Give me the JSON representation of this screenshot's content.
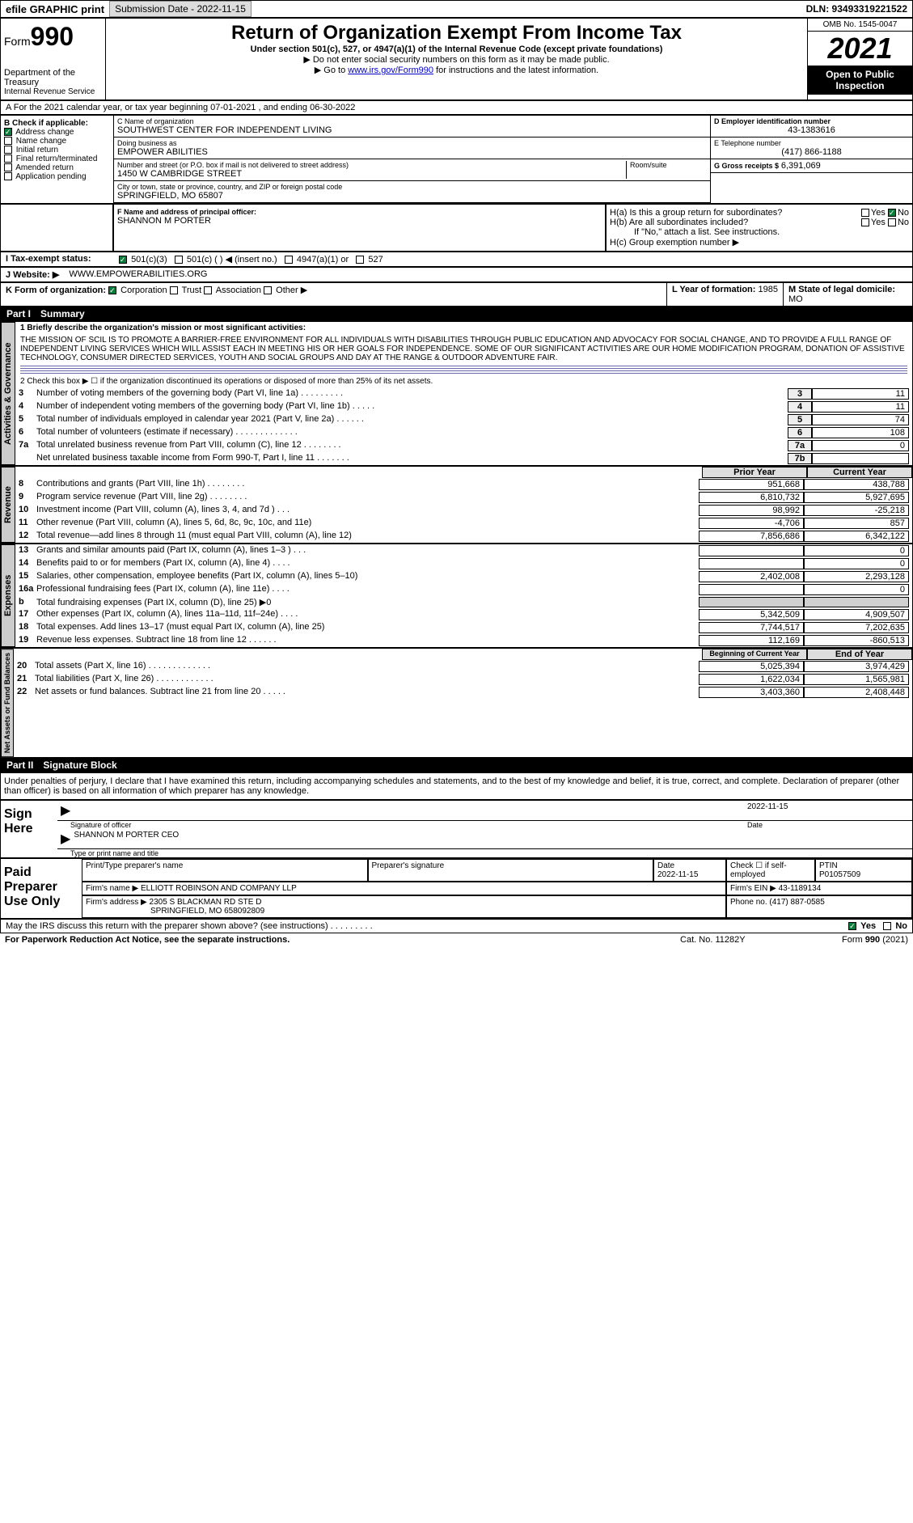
{
  "header": {
    "efile": "efile GRAPHIC print",
    "submission_label": "Submission Date - 2022-11-15",
    "dln": "DLN: 93493319221522"
  },
  "form_top": {
    "form_word": "Form",
    "form_num": "990",
    "dept": "Department of the Treasury",
    "irs": "Internal Revenue Service",
    "title": "Return of Organization Exempt From Income Tax",
    "subtitle": "Under section 501(c), 527, or 4947(a)(1) of the Internal Revenue Code (except private foundations)",
    "instr1": "▶ Do not enter social security numbers on this form as it may be made public.",
    "instr2a": "▶ Go to ",
    "instr2_link": "www.irs.gov/Form990",
    "instr2b": " for instructions and the latest information.",
    "omb": "OMB No. 1545-0047",
    "year": "2021",
    "open": "Open to Public Inspection"
  },
  "row_a": "A  For the 2021 calendar year, or tax year beginning 07-01-2021   , and ending 06-30-2022",
  "col_b": {
    "title": "B Check if applicable:",
    "items": [
      {
        "label": "Address change",
        "checked": true
      },
      {
        "label": "Name change",
        "checked": false
      },
      {
        "label": "Initial return",
        "checked": false
      },
      {
        "label": "Final return/terminated",
        "checked": false
      },
      {
        "label": "Amended return",
        "checked": false
      },
      {
        "label": "Application pending",
        "checked": false
      }
    ]
  },
  "col_c": {
    "name_label": "C Name of organization",
    "name": "SOUTHWEST CENTER FOR INDEPENDENT LIVING",
    "dba_label": "Doing business as",
    "dba": "EMPOWER ABILITIES",
    "addr_label": "Number and street (or P.O. box if mail is not delivered to street address)",
    "addr": "1450 W CAMBRIDGE STREET",
    "room_label": "Room/suite",
    "city_label": "City or town, state or province, country, and ZIP or foreign postal code",
    "city": "SPRINGFIELD, MO  65807"
  },
  "col_d": {
    "d_label": "D Employer identification number",
    "d_val": "43-1383616",
    "e_label": "E Telephone number",
    "e_val": "(417) 866-1188",
    "g_label": "G Gross receipts $",
    "g_val": "6,391,069"
  },
  "block_f": {
    "f_label": "F  Name and address of principal officer:",
    "f_val": "SHANNON M PORTER"
  },
  "block_h": {
    "ha": "H(a)  Is this a group return for subordinates?",
    "ha_no": "No",
    "hb": "H(b)  Are all subordinates included?",
    "hb_note": "If \"No,\" attach a list. See instructions.",
    "hc": "H(c)  Group exemption number ▶"
  },
  "row_i": {
    "i_label": "I  Tax-exempt status:",
    "i_501c3": "501(c)(3)",
    "i_501c": "501(c) (   ) ◀ (insert no.)",
    "i_4947": "4947(a)(1) or",
    "i_527": "527"
  },
  "row_j": {
    "j_label": "J  Website: ▶",
    "j_val": "WWW.EMPOWERABILITIES.ORG"
  },
  "row_k": {
    "k_label": "K Form of organization:",
    "k_corp": "Corporation",
    "k_trust": "Trust",
    "k_assoc": "Association",
    "k_other": "Other ▶",
    "l_label": "L Year of formation:",
    "l_val": "1985",
    "m_label": "M State of legal domicile:",
    "m_val": "MO"
  },
  "part1": {
    "label": "Part I",
    "title": "Summary"
  },
  "gov": {
    "side": "Activities & Governance",
    "line1_label": "1  Briefly describe the organization's mission or most significant activities:",
    "mission": "THE MISSION OF SCIL IS TO PROMOTE A BARRIER-FREE ENVIRONMENT FOR ALL INDIVIDUALS WITH DISABILITIES THROUGH PUBLIC EDUCATION AND ADVOCACY FOR SOCIAL CHANGE, AND TO PROVIDE A FULL RANGE OF INDEPENDENT LIVING SERVICES WHICH WILL ASSIST EACH IN MEETING HIS OR HER GOALS FOR INDEPENDENCE. SOME OF OUR SIGNIFICANT ACTIVITIES ARE OUR HOME MODIFICATION PROGRAM, DONATION OF ASSISTIVE TECHNOLOGY, CONSUMER DIRECTED SERVICES, YOUTH AND SOCIAL GROUPS AND DAY AT THE RANGE & OUTDOOR ADVENTURE FAIR.",
    "line2": "2  Check this box ▶ ☐ if the organization discontinued its operations or disposed of more than 25% of its net assets.",
    "rows": [
      {
        "n": "3",
        "t": "Number of voting members of the governing body (Part VI, line 1a)  .   .   .   .   .   .   .   .   .",
        "box": "3",
        "v": "11"
      },
      {
        "n": "4",
        "t": "Number of independent voting members of the governing body (Part VI, line 1b)  .   .   .   .   .",
        "box": "4",
        "v": "11"
      },
      {
        "n": "5",
        "t": "Total number of individuals employed in calendar year 2021 (Part V, line 2a)  .   .   .   .   .   .",
        "box": "5",
        "v": "74"
      },
      {
        "n": "6",
        "t": "Total number of volunteers (estimate if necessary)  .   .   .   .   .   .   .   .   .   .   .   .   .",
        "box": "6",
        "v": "108"
      },
      {
        "n": "7a",
        "t": "Total unrelated business revenue from Part VIII, column (C), line 12  .   .   .   .   .   .   .   .",
        "box": "7a",
        "v": "0"
      },
      {
        "n": "",
        "t": "Net unrelated business taxable income from Form 990-T, Part I, line 11  .   .   .   .   .   .   .",
        "box": "7b",
        "v": ""
      }
    ]
  },
  "rev": {
    "side": "Revenue",
    "hdr_prior": "Prior Year",
    "hdr_curr": "Current Year",
    "rows": [
      {
        "n": "8",
        "t": "Contributions and grants (Part VIII, line 1h)  .   .   .   .   .   .   .   .",
        "p": "951,668",
        "c": "438,788"
      },
      {
        "n": "9",
        "t": "Program service revenue (Part VIII, line 2g)  .   .   .   .   .   .   .   .",
        "p": "6,810,732",
        "c": "5,927,695"
      },
      {
        "n": "10",
        "t": "Investment income (Part VIII, column (A), lines 3, 4, and 7d )  .   .   .",
        "p": "98,992",
        "c": "-25,218"
      },
      {
        "n": "11",
        "t": "Other revenue (Part VIII, column (A), lines 5, 6d, 8c, 9c, 10c, and 11e)",
        "p": "-4,706",
        "c": "857"
      },
      {
        "n": "12",
        "t": "Total revenue—add lines 8 through 11 (must equal Part VIII, column (A), line 12)",
        "p": "7,856,686",
        "c": "6,342,122"
      }
    ]
  },
  "exp": {
    "side": "Expenses",
    "rows": [
      {
        "n": "13",
        "t": "Grants and similar amounts paid (Part IX, column (A), lines 1–3 )  .   .   .",
        "p": "",
        "c": "0"
      },
      {
        "n": "14",
        "t": "Benefits paid to or for members (Part IX, column (A), line 4)  .   .   .   .",
        "p": "",
        "c": "0"
      },
      {
        "n": "15",
        "t": "Salaries, other compensation, employee benefits (Part IX, column (A), lines 5–10)",
        "p": "2,402,008",
        "c": "2,293,128"
      },
      {
        "n": "16a",
        "t": "Professional fundraising fees (Part IX, column (A), line 11e)  .   .   .   .",
        "p": "",
        "c": "0"
      },
      {
        "n": "b",
        "t": "Total fundraising expenses (Part IX, column (D), line 25) ▶0",
        "p": "",
        "c": "",
        "shaded": true
      },
      {
        "n": "17",
        "t": "Other expenses (Part IX, column (A), lines 11a–11d, 11f–24e)  .   .   .   .",
        "p": "5,342,509",
        "c": "4,909,507"
      },
      {
        "n": "18",
        "t": "Total expenses. Add lines 13–17 (must equal Part IX, column (A), line 25)",
        "p": "7,744,517",
        "c": "7,202,635"
      },
      {
        "n": "19",
        "t": "Revenue less expenses. Subtract line 18 from line 12  .   .   .   .   .   .",
        "p": "112,169",
        "c": "-860,513"
      }
    ]
  },
  "net": {
    "side": "Net Assets or Fund Balances",
    "hdr_beg": "Beginning of Current Year",
    "hdr_end": "End of Year",
    "rows": [
      {
        "n": "20",
        "t": "Total assets (Part X, line 16)  .   .   .   .   .   .   .   .   .   .   .   .   .",
        "p": "5,025,394",
        "c": "3,974,429"
      },
      {
        "n": "21",
        "t": "Total liabilities (Part X, line 26)  .   .   .   .   .   .   .   .   .   .   .   .",
        "p": "1,622,034",
        "c": "1,565,981"
      },
      {
        "n": "22",
        "t": "Net assets or fund balances. Subtract line 21 from line 20  .   .   .   .   .",
        "p": "3,403,360",
        "c": "2,408,448"
      }
    ]
  },
  "part2": {
    "label": "Part II",
    "title": "Signature Block"
  },
  "sig": {
    "perjury": "Under penalties of perjury, I declare that I have examined this return, including accompanying schedules and statements, and to the best of my knowledge and belief, it is true, correct, and complete. Declaration of preparer (other than officer) is based on all information of which preparer has any knowledge.",
    "sign_here": "Sign Here",
    "sig_officer": "Signature of officer",
    "date_label": "Date",
    "date_val": "2022-11-15",
    "name": "SHANNON M PORTER CEO",
    "name_label": "Type or print name and title"
  },
  "paid": {
    "title": "Paid Preparer Use Only",
    "print_label": "Print/Type preparer's name",
    "prep_sig_label": "Preparer's signature",
    "date_label": "Date",
    "date_val": "2022-11-15",
    "check_label": "Check ☐ if self-employed",
    "ptin_label": "PTIN",
    "ptin_val": "P01057509",
    "firm_name_label": "Firm's name    ▶",
    "firm_name": "ELLIOTT ROBINSON AND COMPANY LLP",
    "firm_ein_label": "Firm's EIN ▶",
    "firm_ein": "43-1189134",
    "firm_addr_label": "Firm's address ▶",
    "firm_addr": "2305 S BLACKMAN RD STE D",
    "firm_city": "SPRINGFIELD, MO  658092809",
    "phone_label": "Phone no.",
    "phone": "(417) 887-0585"
  },
  "footer": {
    "discuss": "May the IRS discuss this return with the preparer shown above? (see instructions)  .   .   .   .   .   .   .   .   .",
    "yes": "Yes",
    "no": "No",
    "pra": "For Paperwork Reduction Act Notice, see the separate instructions.",
    "cat": "Cat. No. 11282Y",
    "form": "Form 990 (2021)"
  }
}
